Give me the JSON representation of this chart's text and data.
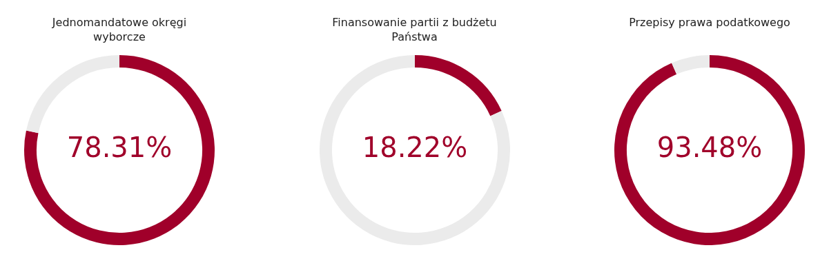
{
  "chart_data": [
    {
      "type": "donut",
      "title": "Jednomandatowe okręgi wyborcze",
      "categories": [
        null,
        null
      ],
      "values": [
        78.31,
        21.69
      ],
      "colors": [
        "#a0002a",
        "#ebebeb"
      ],
      "value_labels": [
        "78.31%",
        null
      ],
      "legend": false
    },
    {
      "type": "donut",
      "title": "Finansowanie partii z budżetu Państwa",
      "categories": [
        null,
        null
      ],
      "values": [
        18.22,
        81.78
      ],
      "colors": [
        "#a0002a",
        "#ebebeb"
      ],
      "value_labels": [
        "18.22%",
        null
      ],
      "legend": false
    },
    {
      "type": "donut",
      "title": "Przepisy prawa podatkowego",
      "categories": [
        null,
        null
      ],
      "values": [
        93.48,
        6.52
      ],
      "colors": [
        "#a0002a",
        "#ebebeb"
      ],
      "value_labels": [
        "93.48%",
        null
      ],
      "legend": false
    }
  ]
}
